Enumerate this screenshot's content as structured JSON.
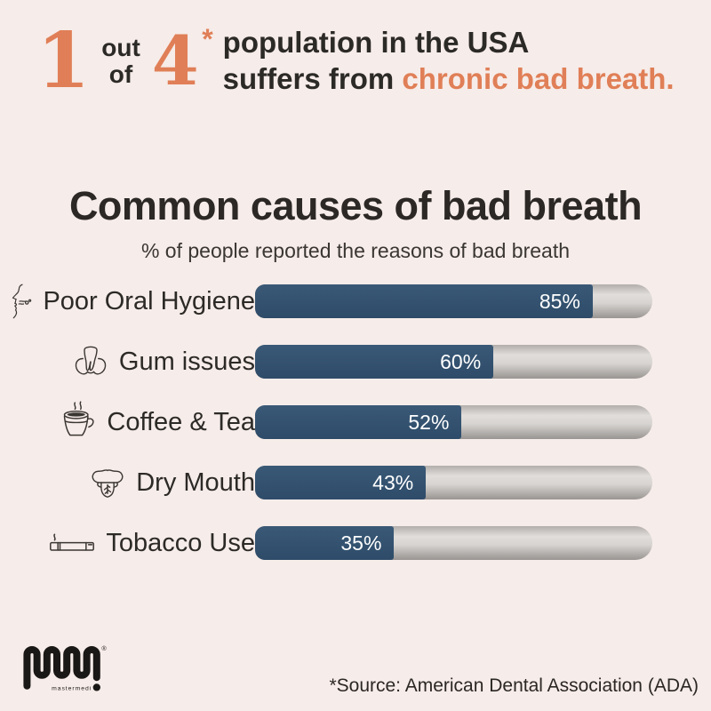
{
  "header": {
    "big_one": "1",
    "out": "out",
    "of": "of",
    "big_four": "4",
    "asterisk": "*",
    "line1": "population in the USA",
    "line2_prefix": "suffers from ",
    "line2_highlight": "chronic bad breath."
  },
  "title": "Common causes of bad breath",
  "subtitle": "% of people reported the reasons of bad breath",
  "chart_data": {
    "type": "bar",
    "orientation": "horizontal",
    "title": "Common causes of bad breath",
    "subtitle": "% of people reported the reasons of bad breath",
    "categories": [
      "Poor Oral Hygiene",
      "Gum issues",
      "Coffee & Tea",
      "Dry Mouth",
      "Tobacco Use"
    ],
    "values": [
      85,
      60,
      52,
      43,
      35
    ],
    "value_labels": [
      "85%",
      "60%",
      "52%",
      "43%",
      "35%"
    ],
    "icons": [
      "bad-breath-face-icon",
      "tooth-gums-icon",
      "coffee-cup-icon",
      "dry-mouth-icon",
      "cigarette-icon"
    ],
    "xlim": [
      0,
      100
    ],
    "value_label_position": "inside-end",
    "bar_color": "#2e4c69",
    "track_style": "gray-gradient-pill"
  },
  "footer": {
    "logo_text": "mastermedi",
    "registered_mark": "®",
    "source": "*Source: American Dental Association (ADA)"
  },
  "colors": {
    "background": "#f6ece9",
    "accent_orange": "#e07f57",
    "text_dark": "#2c2a27",
    "bar_navy": "#2e4c69",
    "value_text": "#ffffff"
  }
}
